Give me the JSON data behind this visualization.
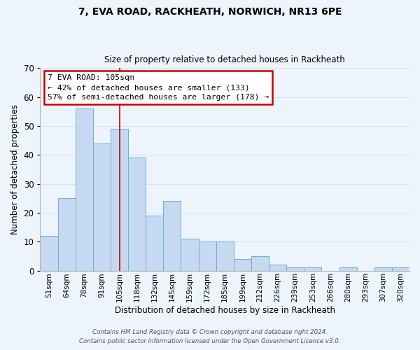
{
  "title": "7, EVA ROAD, RACKHEATH, NORWICH, NR13 6PE",
  "subtitle": "Size of property relative to detached houses in Rackheath",
  "xlabel": "Distribution of detached houses by size in Rackheath",
  "ylabel": "Number of detached properties",
  "bar_color": "#c5d9f0",
  "bar_edge_color": "#6baed6",
  "categories": [
    "51sqm",
    "64sqm",
    "78sqm",
    "91sqm",
    "105sqm",
    "118sqm",
    "132sqm",
    "145sqm",
    "159sqm",
    "172sqm",
    "185sqm",
    "199sqm",
    "212sqm",
    "226sqm",
    "239sqm",
    "253sqm",
    "266sqm",
    "280sqm",
    "293sqm",
    "307sqm",
    "320sqm"
  ],
  "values": [
    12,
    25,
    56,
    44,
    49,
    39,
    19,
    24,
    11,
    10,
    10,
    4,
    5,
    2,
    1,
    1,
    0,
    1,
    0,
    1,
    1
  ],
  "ylim": [
    0,
    70
  ],
  "yticks": [
    0,
    10,
    20,
    30,
    40,
    50,
    60,
    70
  ],
  "annotation_line1": "7 EVA ROAD: 105sqm",
  "annotation_line2": "← 42% of detached houses are smaller (133)",
  "annotation_line3": "57% of semi-detached houses are larger (178) →",
  "annotation_box_color": "#ffffff",
  "annotation_box_edge_color": "#cc0000",
  "highlight_bar_index": 4,
  "vline_color": "#cc0000",
  "grid_color": "#d0e4f7",
  "footer_line1": "Contains HM Land Registry data © Crown copyright and database right 2024.",
  "footer_line2": "Contains public sector information licensed under the Open Government Licence v3.0.",
  "background_color": "#eef4fb"
}
